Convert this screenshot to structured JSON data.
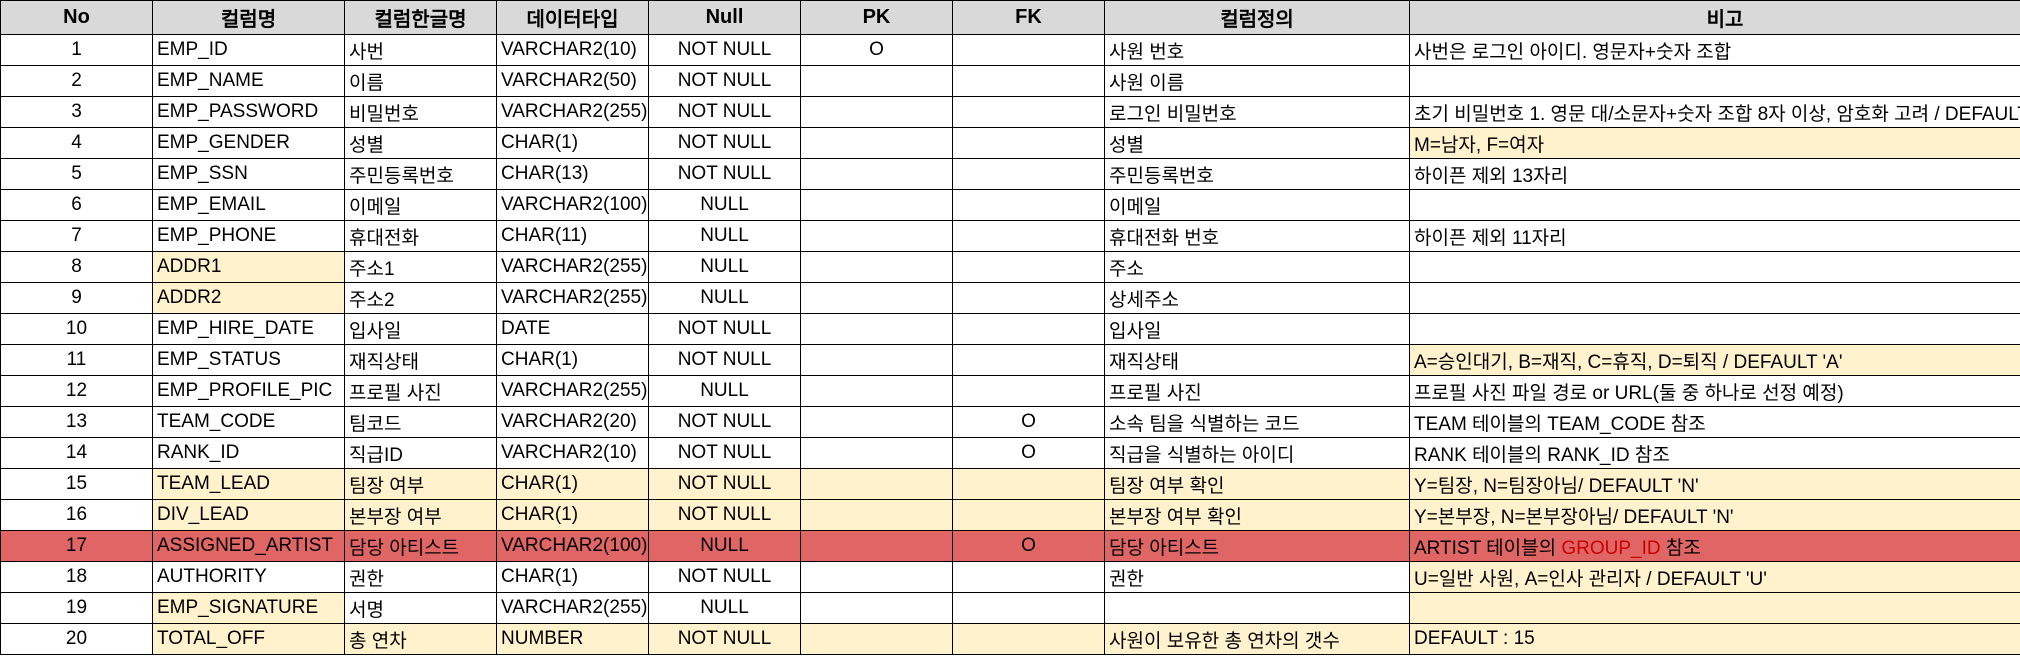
{
  "headers": [
    "No",
    "컬럼명",
    "컬럼한글명",
    "데이터타입",
    "Null",
    "PK",
    "FK",
    "컬럼정의",
    "비고"
  ],
  "rows": [
    {
      "no": "1",
      "col": "EMP_ID",
      "kor": "사번",
      "type": "VARCHAR2(10)",
      "null": "NOT NULL",
      "pk": "O",
      "fk": "",
      "def": "사원 번호",
      "note": "사번은 로그인 아이디. 영문자+숫자 조합"
    },
    {
      "no": "2",
      "col": "EMP_NAME",
      "kor": "이름",
      "type": "VARCHAR2(50)",
      "null": "NOT NULL",
      "pk": "",
      "fk": "",
      "def": "사원 이름",
      "note": ""
    },
    {
      "no": "3",
      "col": "EMP_PASSWORD",
      "kor": "비밀번호",
      "type": "VARCHAR2(255)",
      "null": "NOT NULL",
      "pk": "",
      "fk": "",
      "def": "로그인 비밀번호",
      "note": "초기 비밀번호 1. 영문 대/소문자+숫자 조합 8자 이상, 암호화 고려 / DEFAULT"
    },
    {
      "no": "4",
      "col": "EMP_GENDER",
      "kor": "성별",
      "type": "CHAR(1)",
      "null": "NOT NULL",
      "pk": "",
      "fk": "",
      "def": "성별",
      "note": "M=남자, F=여자"
    },
    {
      "no": "5",
      "col": "EMP_SSN",
      "kor": "주민등록번호",
      "type": "CHAR(13)",
      "null": "NOT NULL",
      "pk": "",
      "fk": "",
      "def": "주민등록번호",
      "note": "하이픈 제외 13자리"
    },
    {
      "no": "6",
      "col": "EMP_EMAIL",
      "kor": "이메일",
      "type": "VARCHAR2(100)",
      "null": "NULL",
      "pk": "",
      "fk": "",
      "def": "이메일",
      "note": ""
    },
    {
      "no": "7",
      "col": "EMP_PHONE",
      "kor": "휴대전화",
      "type": "CHAR(11)",
      "null": "NULL",
      "pk": "",
      "fk": "",
      "def": "휴대전화 번호",
      "note": "하이픈 제외 11자리"
    },
    {
      "no": "8",
      "col": "ADDR1",
      "kor": "주소1",
      "type": "VARCHAR2(255)",
      "null": "NULL",
      "pk": "",
      "fk": "",
      "def": "주소",
      "note": ""
    },
    {
      "no": "9",
      "col": "ADDR2",
      "kor": "주소2",
      "type": "VARCHAR2(255)",
      "null": "NULL",
      "pk": "",
      "fk": "",
      "def": "상세주소",
      "note": ""
    },
    {
      "no": "10",
      "col": "EMP_HIRE_DATE",
      "kor": "입사일",
      "type": "DATE",
      "null": "NOT NULL",
      "pk": "",
      "fk": "",
      "def": "입사일",
      "note": ""
    },
    {
      "no": "11",
      "col": "EMP_STATUS",
      "kor": "재직상태",
      "type": "CHAR(1)",
      "null": "NOT NULL",
      "pk": "",
      "fk": "",
      "def": "재직상태",
      "note": "A=승인대기, B=재직, C=휴직, D=퇴직 / DEFAULT 'A'"
    },
    {
      "no": "12",
      "col": "EMP_PROFILE_PIC",
      "kor": "프로필 사진",
      "type": "VARCHAR2(255)",
      "null": "NULL",
      "pk": "",
      "fk": "",
      "def": "프로필 사진",
      "note": "프로필 사진 파일 경로 or URL(둘 중 하나로 선정 예정)"
    },
    {
      "no": "13",
      "col": "TEAM_CODE",
      "kor": "팀코드",
      "type": "VARCHAR2(20)",
      "null": "NOT NULL",
      "pk": "",
      "fk": "O",
      "def": "소속 팀을 식별하는 코드",
      "note": "TEAM 테이블의 TEAM_CODE 참조"
    },
    {
      "no": "14",
      "col": "RANK_ID",
      "kor": "직급ID",
      "type": "VARCHAR2(10)",
      "null": "NOT NULL",
      "pk": "",
      "fk": "O",
      "def": "직급을 식별하는 아이디",
      "note": "RANK 테이블의 RANK_ID 참조"
    },
    {
      "no": "15",
      "col": "TEAM_LEAD",
      "kor": "팀장 여부",
      "type": "CHAR(1)",
      "null": "NOT NULL",
      "pk": "",
      "fk": "",
      "def": "팀장 여부 확인",
      "note": "Y=팀장, N=팀장아님/ DEFAULT 'N'"
    },
    {
      "no": "16",
      "col": "DIV_LEAD",
      "kor": "본부장 여부",
      "type": "CHAR(1)",
      "null": "NOT NULL",
      "pk": "",
      "fk": "",
      "def": "본부장 여부 확인",
      "note": "Y=본부장, N=본부장아님/ DEFAULT 'N'"
    },
    {
      "no": "17",
      "col": "ASSIGNED_ARTIST",
      "kor": "담당 아티스트",
      "type": "VARCHAR2(100)",
      "null": "NULL",
      "pk": "",
      "fk": "O",
      "def": "담당 아티스트",
      "note": "ARTIST 테이블의 ",
      "note_red": "GROUP_ID",
      "note_tail": " 참조"
    },
    {
      "no": "18",
      "col": "AUTHORITY",
      "kor": "권한",
      "type": "CHAR(1)",
      "null": "NOT NULL",
      "pk": "",
      "fk": "",
      "def": "권한",
      "note": "U=일반 사원, A=인사 관리자 / DEFAULT 'U'"
    },
    {
      "no": "19",
      "col": "EMP_SIGNATURE",
      "kor": "서명",
      "type": "VARCHAR2(255)",
      "null": "NULL",
      "pk": "",
      "fk": "",
      "def": "",
      "note": ""
    },
    {
      "no": "20",
      "col": "TOTAL_OFF",
      "kor": "총 연차",
      "type": "NUMBER",
      "null": "NOT NULL",
      "pk": "",
      "fk": "",
      "def": "사원이 보유한 총 연차의 갯수",
      "note": "DEFAULT : 15"
    }
  ]
}
